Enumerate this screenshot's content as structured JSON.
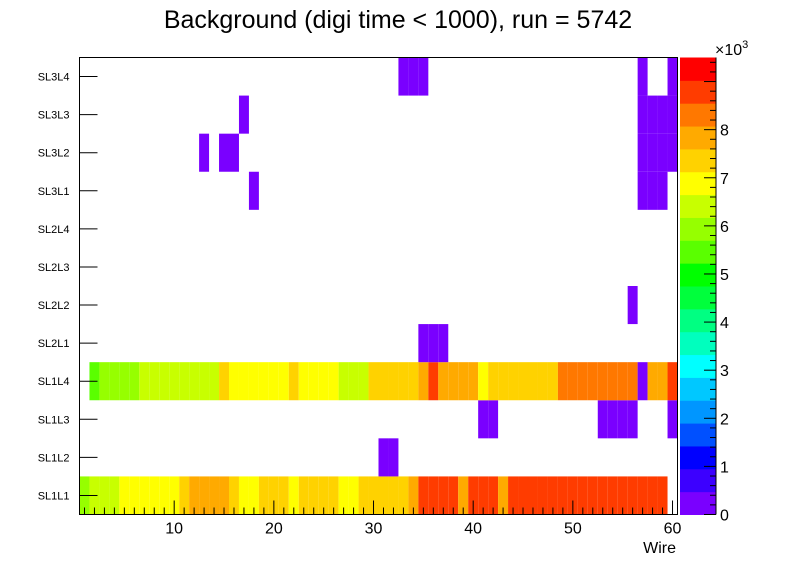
{
  "chart_data": {
    "type": "heatmap",
    "title": "Background (digi time < 1000), run = 5742",
    "xlabel": "Wire",
    "ylabel": "",
    "xlim": [
      0.5,
      60.5
    ],
    "x_ticks": [
      10,
      20,
      30,
      40,
      50,
      60
    ],
    "x_tick_labels": [
      "10",
      "20",
      "30",
      "40",
      "50",
      "60"
    ],
    "y_categories": [
      "SL1L1",
      "SL1L2",
      "SL1L3",
      "SL1L4",
      "SL2L1",
      "SL2L2",
      "SL2L3",
      "SL2L4",
      "SL3L1",
      "SL3L2",
      "SL3L3",
      "SL3L4"
    ],
    "z_range": [
      0,
      9500
    ],
    "z_ticks": [
      0,
      1,
      2,
      3,
      4,
      5,
      6,
      7,
      8
    ],
    "z_tick_labels": [
      "0",
      "1",
      "2",
      "3",
      "4",
      "5",
      "6",
      "7",
      "8"
    ],
    "z_exponent_label": "×10",
    "z_exponent_power": "3",
    "grid": false,
    "palette": [
      "#7a00ff",
      "#3c00ff",
      "#0000ff",
      "#0050ff",
      "#0096ff",
      "#00c8ff",
      "#00ffff",
      "#00ffbe",
      "#00ff82",
      "#00ff3c",
      "#00ff00",
      "#5aff00",
      "#96ff00",
      "#c8ff00",
      "#ffff00",
      "#ffd200",
      "#ffaa00",
      "#ff7800",
      "#ff3c00",
      "#ff0000"
    ],
    "rows": [
      {
        "layer": "SL1L1",
        "values": [
          6100,
          6300,
          6600,
          6600,
          6800,
          6700,
          7000,
          7000,
          7000,
          7000,
          7200,
          7600,
          7600,
          7600,
          7600,
          7200,
          6900,
          6900,
          7300,
          7300,
          7300,
          6900,
          7300,
          7300,
          7300,
          7300,
          6900,
          7100,
          7500,
          7500,
          7500,
          7500,
          7500,
          7800,
          8700,
          8700,
          8700,
          8700,
          7700,
          8700,
          8700,
          8700,
          7600,
          8700,
          8700,
          8700,
          8700,
          8700,
          8700,
          8700,
          8700,
          8700,
          8700,
          8700,
          8700,
          8700,
          8700,
          8700,
          8700,
          0
        ]
      },
      {
        "layer": "SL1L2",
        "values": [
          0,
          0,
          0,
          0,
          0,
          0,
          0,
          0,
          0,
          0,
          0,
          0,
          0,
          0,
          0,
          0,
          0,
          0,
          0,
          0,
          0,
          0,
          0,
          0,
          0,
          0,
          0,
          0,
          0,
          0,
          100,
          100,
          0,
          0,
          0,
          0,
          0,
          0,
          0,
          0,
          0,
          0,
          0,
          0,
          0,
          0,
          0,
          0,
          0,
          0,
          0,
          0,
          0,
          0,
          0,
          0,
          0,
          0,
          0,
          0
        ]
      },
      {
        "layer": "SL1L3",
        "values": [
          0,
          0,
          0,
          0,
          0,
          0,
          0,
          0,
          0,
          0,
          0,
          0,
          0,
          0,
          0,
          0,
          0,
          0,
          0,
          0,
          0,
          0,
          0,
          0,
          0,
          0,
          0,
          0,
          0,
          0,
          0,
          0,
          0,
          0,
          0,
          0,
          0,
          0,
          0,
          0,
          100,
          100,
          0,
          0,
          0,
          0,
          0,
          0,
          0,
          0,
          0,
          0,
          100,
          100,
          100,
          100,
          0,
          0,
          0,
          100
        ]
      },
      {
        "layer": "SL1L4",
        "values": [
          0,
          5600,
          5800,
          6000,
          6000,
          6000,
          6200,
          6200,
          6200,
          6200,
          6600,
          6600,
          6600,
          6600,
          7200,
          6800,
          7100,
          6700,
          6700,
          6900,
          6900,
          7200,
          6900,
          6900,
          6900,
          6900,
          6600,
          6600,
          6400,
          7200,
          7200,
          7200,
          7200,
          7200,
          8000,
          8600,
          7700,
          7700,
          7700,
          8000,
          6900,
          7200,
          7500,
          7500,
          7500,
          7500,
          7500,
          7500,
          8100,
          8100,
          8100,
          8100,
          8100,
          8100,
          8100,
          8100,
          400,
          7600,
          7600,
          8700
        ]
      },
      {
        "layer": "SL2L1",
        "values": [
          0,
          0,
          0,
          0,
          0,
          0,
          0,
          0,
          0,
          0,
          0,
          0,
          0,
          0,
          0,
          0,
          0,
          0,
          0,
          0,
          0,
          0,
          0,
          0,
          0,
          0,
          0,
          0,
          0,
          0,
          0,
          0,
          0,
          0,
          100,
          100,
          100,
          0,
          0,
          0,
          0,
          0,
          0,
          0,
          0,
          0,
          0,
          0,
          0,
          0,
          0,
          0,
          0,
          0,
          0,
          0,
          0,
          0,
          0,
          0
        ]
      },
      {
        "layer": "SL2L2",
        "values": [
          0,
          0,
          0,
          0,
          0,
          0,
          0,
          0,
          0,
          0,
          0,
          0,
          0,
          0,
          0,
          0,
          0,
          0,
          0,
          0,
          0,
          0,
          0,
          0,
          0,
          0,
          0,
          0,
          0,
          0,
          0,
          0,
          0,
          0,
          0,
          0,
          0,
          0,
          0,
          0,
          0,
          0,
          0,
          0,
          0,
          0,
          0,
          0,
          0,
          0,
          0,
          0,
          0,
          0,
          0,
          100,
          0,
          0,
          0,
          0
        ]
      },
      {
        "layer": "SL2L3",
        "values": [
          0,
          0,
          0,
          0,
          0,
          0,
          0,
          0,
          0,
          0,
          0,
          0,
          0,
          0,
          0,
          0,
          0,
          0,
          0,
          0,
          0,
          0,
          0,
          0,
          0,
          0,
          0,
          0,
          0,
          0,
          0,
          0,
          0,
          0,
          0,
          0,
          0,
          0,
          0,
          0,
          0,
          0,
          0,
          0,
          0,
          0,
          0,
          0,
          0,
          0,
          0,
          0,
          0,
          0,
          0,
          0,
          0,
          0,
          0,
          0
        ]
      },
      {
        "layer": "SL2L4",
        "values": [
          0,
          0,
          0,
          0,
          0,
          0,
          0,
          0,
          0,
          0,
          0,
          0,
          0,
          0,
          0,
          0,
          0,
          0,
          0,
          0,
          0,
          0,
          0,
          0,
          0,
          0,
          0,
          0,
          0,
          0,
          0,
          0,
          0,
          0,
          0,
          0,
          0,
          0,
          0,
          0,
          0,
          0,
          0,
          0,
          0,
          0,
          0,
          0,
          0,
          0,
          0,
          0,
          0,
          0,
          0,
          0,
          0,
          0,
          0,
          0
        ]
      },
      {
        "layer": "SL3L1",
        "values": [
          0,
          0,
          0,
          0,
          0,
          0,
          0,
          0,
          0,
          0,
          0,
          0,
          0,
          0,
          0,
          0,
          0,
          100,
          0,
          0,
          0,
          0,
          0,
          0,
          0,
          0,
          0,
          0,
          0,
          0,
          0,
          0,
          0,
          0,
          0,
          0,
          0,
          0,
          0,
          0,
          0,
          0,
          0,
          0,
          0,
          0,
          0,
          0,
          0,
          0,
          0,
          0,
          0,
          0,
          0,
          0,
          100,
          100,
          100,
          0
        ]
      },
      {
        "layer": "SL3L2",
        "values": [
          0,
          0,
          0,
          0,
          0,
          0,
          0,
          0,
          0,
          0,
          0,
          0,
          100,
          0,
          100,
          100,
          0,
          0,
          0,
          0,
          0,
          0,
          0,
          0,
          0,
          0,
          0,
          0,
          0,
          0,
          0,
          0,
          0,
          0,
          0,
          0,
          0,
          0,
          0,
          0,
          0,
          0,
          0,
          0,
          0,
          0,
          0,
          0,
          0,
          0,
          0,
          0,
          0,
          0,
          0,
          0,
          100,
          100,
          100,
          100
        ]
      },
      {
        "layer": "SL3L3",
        "values": [
          0,
          0,
          0,
          0,
          0,
          0,
          0,
          0,
          0,
          0,
          0,
          0,
          0,
          0,
          0,
          0,
          100,
          0,
          0,
          0,
          0,
          0,
          0,
          0,
          0,
          0,
          0,
          0,
          0,
          0,
          0,
          0,
          0,
          0,
          0,
          0,
          0,
          0,
          0,
          0,
          0,
          0,
          0,
          0,
          0,
          0,
          0,
          0,
          0,
          0,
          0,
          0,
          0,
          0,
          0,
          0,
          100,
          100,
          100,
          100
        ]
      },
      {
        "layer": "SL3L4",
        "values": [
          0,
          0,
          0,
          0,
          0,
          0,
          0,
          0,
          0,
          0,
          0,
          0,
          0,
          0,
          0,
          0,
          0,
          0,
          0,
          0,
          0,
          0,
          0,
          0,
          0,
          0,
          0,
          0,
          0,
          0,
          0,
          0,
          100,
          100,
          100,
          0,
          0,
          0,
          0,
          0,
          0,
          0,
          0,
          0,
          0,
          0,
          0,
          0,
          0,
          0,
          0,
          0,
          0,
          0,
          0,
          0,
          100,
          0,
          0,
          100
        ]
      }
    ]
  }
}
